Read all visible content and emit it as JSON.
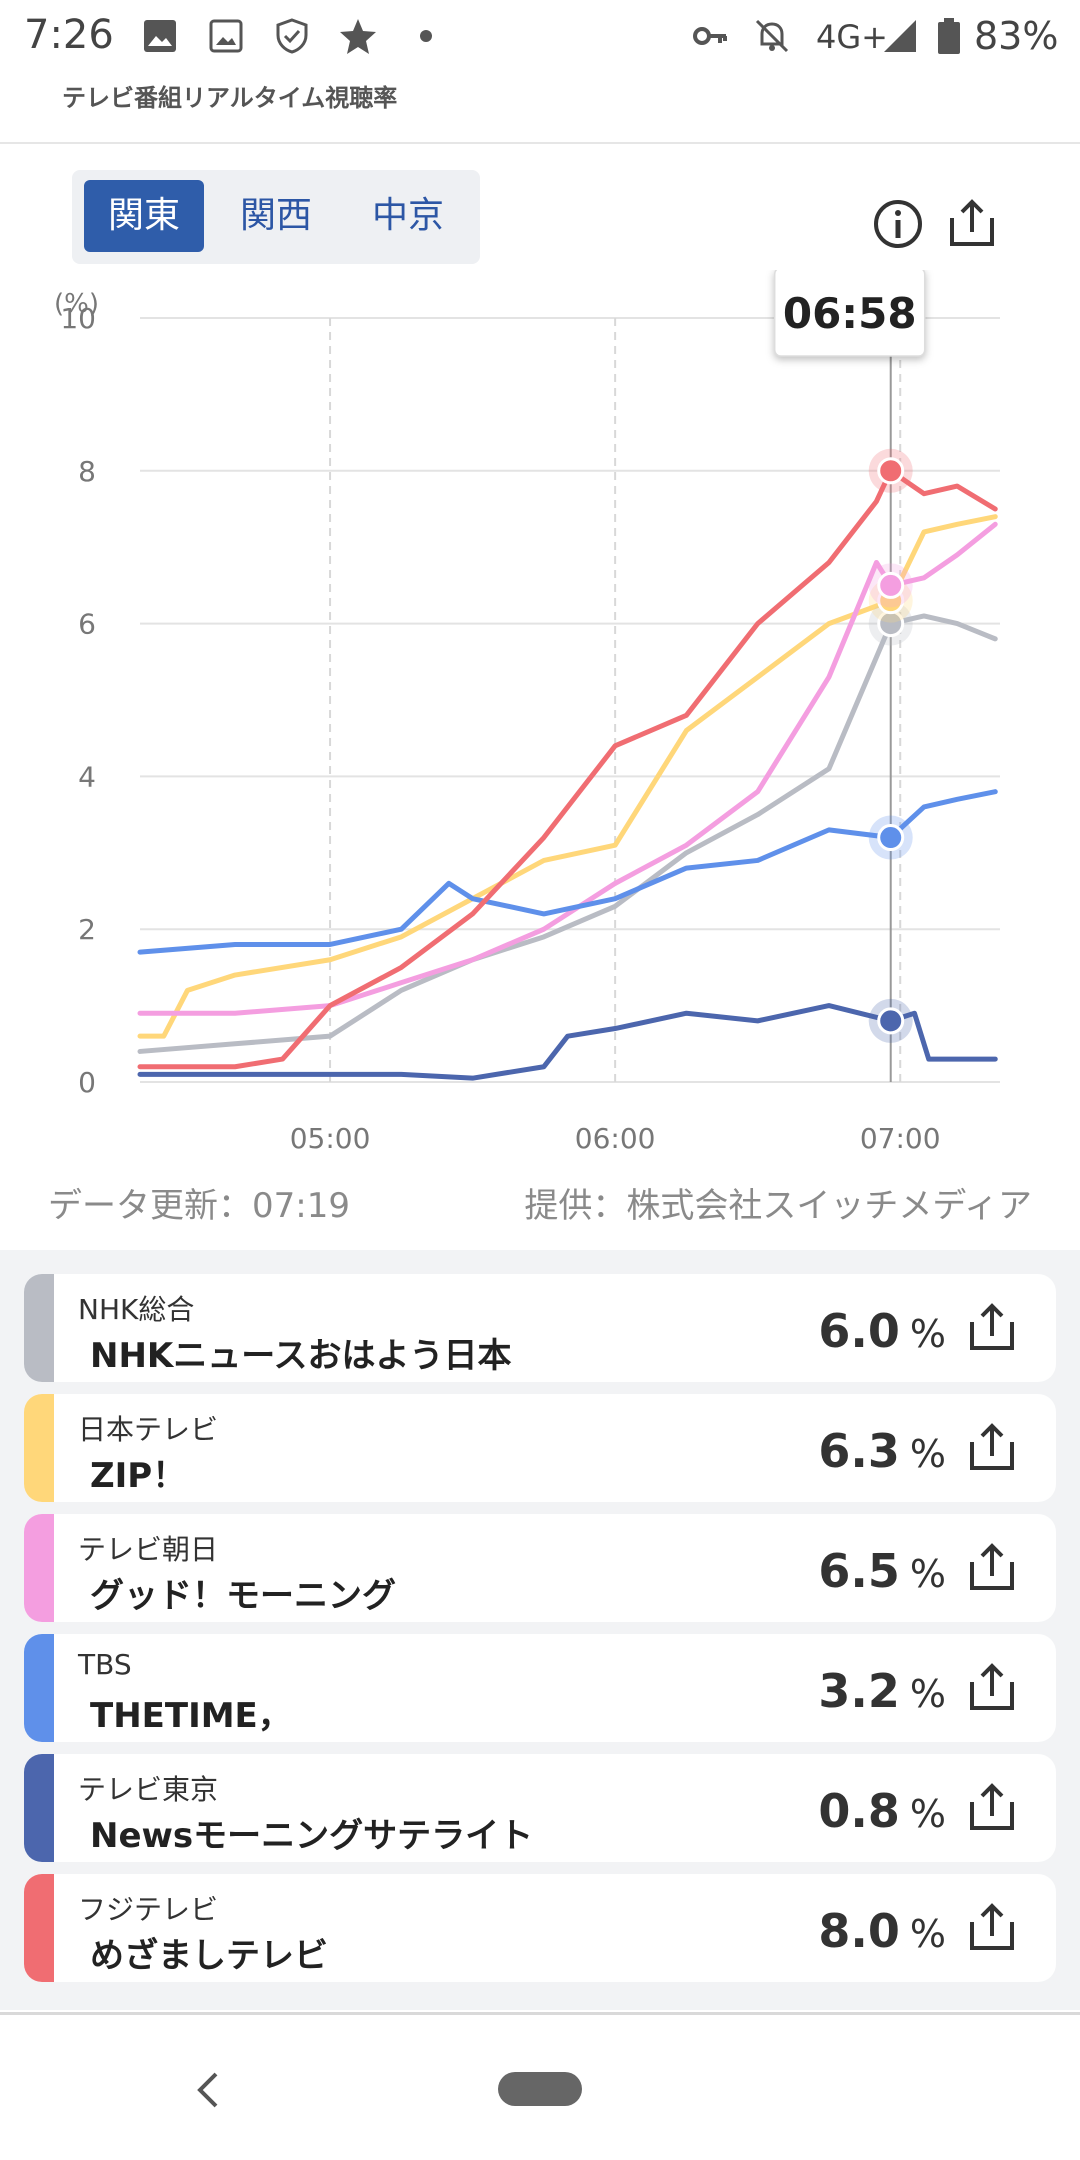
{
  "status_bar": {
    "time": "7:26",
    "network": "4G+",
    "battery": "83%",
    "icons": [
      "image-icon",
      "image-icon",
      "shield-icon",
      "star-icon",
      "dot-icon",
      "key-icon",
      "bell-off-icon",
      "signal-icon",
      "battery-icon"
    ]
  },
  "header": {
    "subtitle": "テレビ番組リアルタイム視聴率"
  },
  "tabs": [
    {
      "label": "関東",
      "active": true
    },
    {
      "label": "関西",
      "active": false
    },
    {
      "label": "中京",
      "active": false
    }
  ],
  "actions": {
    "info_icon": "info-icon",
    "share_icon": "share-icon"
  },
  "chart_data": {
    "type": "line",
    "ylabel": "(%)",
    "ylim": [
      0,
      10
    ],
    "y_ticks": [
      "0",
      "2",
      "4",
      "6",
      "8",
      "10"
    ],
    "x_ticks": [
      "05:00",
      "06:00",
      "07:00"
    ],
    "x_range": [
      "04:20",
      "07:21"
    ],
    "tooltip_time": "06:58",
    "grid": true,
    "series": [
      {
        "name": "NHK総合",
        "color": "#b9bcc4",
        "x": [
          "04:20",
          "04:40",
          "05:00",
          "05:15",
          "05:30",
          "05:45",
          "06:00",
          "06:15",
          "06:30",
          "06:45",
          "06:58",
          "07:05",
          "07:12",
          "07:20"
        ],
        "values": [
          0.4,
          0.5,
          0.6,
          1.2,
          1.6,
          1.9,
          2.3,
          3.0,
          3.5,
          4.1,
          6.0,
          6.1,
          6.0,
          5.8
        ]
      },
      {
        "name": "日本テレビ",
        "color": "#ffd77a",
        "x": [
          "04:20",
          "04:25",
          "04:30",
          "04:40",
          "05:00",
          "05:15",
          "05:30",
          "05:45",
          "06:00",
          "06:15",
          "06:30",
          "06:45",
          "06:58",
          "07:05",
          "07:12",
          "07:20"
        ],
        "values": [
          0.6,
          0.6,
          1.2,
          1.4,
          1.6,
          1.9,
          2.4,
          2.9,
          3.1,
          4.6,
          5.3,
          6.0,
          6.3,
          7.2,
          7.3,
          7.4
        ]
      },
      {
        "name": "テレビ朝日",
        "color": "#f49ee0",
        "x": [
          "04:20",
          "04:40",
          "05:00",
          "05:15",
          "05:30",
          "05:45",
          "06:00",
          "06:15",
          "06:30",
          "06:45",
          "06:55",
          "06:58",
          "07:05",
          "07:12",
          "07:20"
        ],
        "values": [
          0.9,
          0.9,
          1.0,
          1.3,
          1.6,
          2.0,
          2.6,
          3.1,
          3.8,
          5.3,
          6.8,
          6.5,
          6.6,
          6.9,
          7.3
        ]
      },
      {
        "name": "TBS",
        "color": "#5f90ea",
        "x": [
          "04:20",
          "04:40",
          "05:00",
          "05:15",
          "05:25",
          "05:30",
          "05:45",
          "06:00",
          "06:15",
          "06:30",
          "06:45",
          "06:58",
          "07:05",
          "07:12",
          "07:20"
        ],
        "values": [
          1.7,
          1.8,
          1.8,
          2.0,
          2.6,
          2.4,
          2.2,
          2.4,
          2.8,
          2.9,
          3.3,
          3.2,
          3.6,
          3.7,
          3.8
        ]
      },
      {
        "name": "テレビ東京",
        "color": "#4c66ad",
        "x": [
          "04:20",
          "04:40",
          "05:00",
          "05:15",
          "05:30",
          "05:45",
          "05:50",
          "06:00",
          "06:15",
          "06:30",
          "06:45",
          "06:58",
          "07:03",
          "07:06",
          "07:20"
        ],
        "values": [
          0.1,
          0.1,
          0.1,
          0.1,
          0.05,
          0.2,
          0.6,
          0.7,
          0.9,
          0.8,
          1.0,
          0.8,
          0.9,
          0.3,
          0.3
        ]
      },
      {
        "name": "フジテレビ",
        "color": "#f06d72",
        "x": [
          "04:20",
          "04:40",
          "04:50",
          "05:00",
          "05:15",
          "05:30",
          "05:45",
          "06:00",
          "06:15",
          "06:30",
          "06:45",
          "06:55",
          "06:58",
          "07:05",
          "07:12",
          "07:20"
        ],
        "values": [
          0.2,
          0.2,
          0.3,
          1.0,
          1.5,
          2.2,
          3.2,
          4.4,
          4.8,
          6.0,
          6.8,
          7.6,
          8.0,
          7.7,
          7.8,
          7.5
        ]
      }
    ]
  },
  "footer": {
    "updated": "データ更新：07:19",
    "provider": "提供：株式会社スイッチメディア"
  },
  "programs": [
    {
      "channel": "NHK総合",
      "title": "NHKニュースおはよう日本",
      "value": "6.0",
      "unit": "%",
      "color": "#b9bcc4"
    },
    {
      "channel": "日本テレビ",
      "title": "ZIP！",
      "value": "6.3",
      "unit": "%",
      "color": "#ffd77a"
    },
    {
      "channel": "テレビ朝日",
      "title": "グッド！モーニング",
      "value": "6.5",
      "unit": "%",
      "color": "#f49ee0"
    },
    {
      "channel": "TBS",
      "title": "THETIME，",
      "value": "3.2",
      "unit": "%",
      "color": "#5f90ea"
    },
    {
      "channel": "テレビ東京",
      "title": "Newsモーニングサテライト",
      "value": "0.8",
      "unit": "%",
      "color": "#4c66ad"
    },
    {
      "channel": "フジテレビ",
      "title": "めざましテレビ",
      "value": "8.0",
      "unit": "%",
      "color": "#f06d72"
    }
  ]
}
